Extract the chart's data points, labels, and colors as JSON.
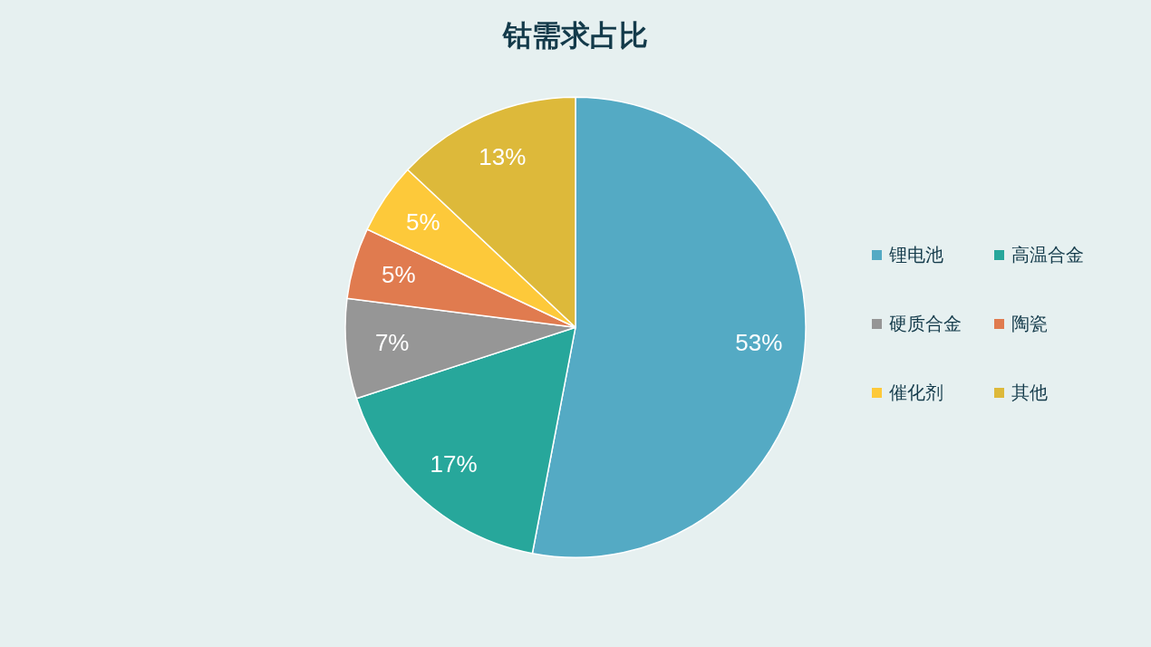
{
  "chart_data": {
    "type": "pie",
    "title": "钴需求占比",
    "categories": [
      "锂电池",
      "高温合金",
      "硬质合金",
      "陶瓷",
      "催化剂",
      "其他"
    ],
    "values": [
      53,
      17,
      7,
      5,
      5,
      13
    ],
    "colors": [
      "#54aac4",
      "#27a79b",
      "#969696",
      "#e07b4f",
      "#fdc93a",
      "#ddb93a"
    ],
    "value_labels": [
      "53%",
      "17%",
      "7%",
      "5%",
      "5%",
      "13%"
    ],
    "legend": "right"
  }
}
